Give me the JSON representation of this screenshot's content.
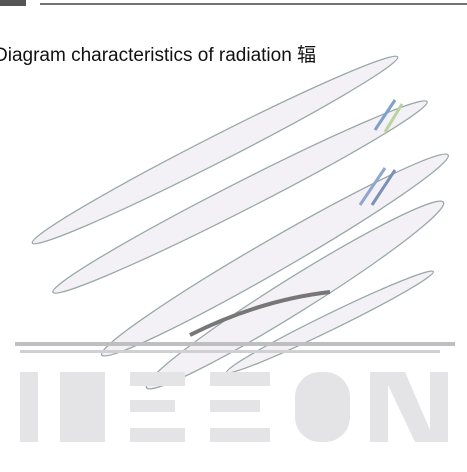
{
  "caption": "Diagram characteristics of radiation 辐"
}
